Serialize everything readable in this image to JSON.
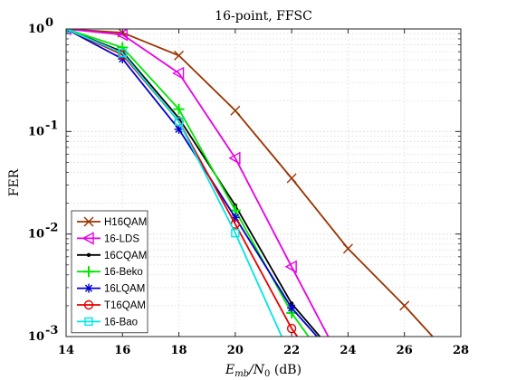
{
  "chart_data": {
    "type": "line",
    "title": "16-point, FFSC",
    "xlabel_parts": {
      "base": "E",
      "sub": "mb",
      "mid": "/N",
      "sub2": "0",
      "unit": " (dB)"
    },
    "ylabel": "FER",
    "xlim": [
      14,
      28
    ],
    "ylim": [
      0.001,
      1
    ],
    "yscale": "log",
    "grid": true,
    "legend_position": "bottom-left",
    "x_tick_labels": [
      "14",
      "16",
      "18",
      "20",
      "22",
      "24",
      "26",
      "28"
    ],
    "y_tick_labels": [
      {
        "base": "10",
        "exp": "0"
      },
      {
        "base": "10",
        "exp": "-1"
      },
      {
        "base": "10",
        "exp": "-2"
      },
      {
        "base": "10",
        "exp": "-3"
      }
    ],
    "series": [
      {
        "name": "H16QAM",
        "color": "#993300",
        "marker": "x",
        "x": [
          14,
          16,
          18,
          20,
          22,
          24,
          26,
          27
        ],
        "y": [
          1.0,
          0.92,
          0.55,
          0.16,
          0.035,
          0.0072,
          0.002,
          0.001
        ]
      },
      {
        "name": "16-LDS",
        "color": "#e600e6",
        "marker": "triangle-left",
        "x": [
          14,
          16,
          18,
          20,
          22,
          23.3
        ],
        "y": [
          1.0,
          0.88,
          0.37,
          0.055,
          0.0048,
          0.001
        ]
      },
      {
        "name": "16CQAM",
        "color": "#000000",
        "marker": "dot",
        "x": [
          14,
          16,
          18,
          20,
          22,
          23.0
        ],
        "y": [
          1.0,
          0.6,
          0.135,
          0.019,
          0.0021,
          0.001
        ]
      },
      {
        "name": "16-Beko",
        "color": "#00e600",
        "marker": "plus",
        "x": [
          14,
          16,
          18,
          20,
          22,
          22.6
        ],
        "y": [
          1.0,
          0.66,
          0.165,
          0.017,
          0.0017,
          0.001
        ]
      },
      {
        "name": "16LQAM",
        "color": "#0000cc",
        "marker": "asterisk",
        "x": [
          14,
          16,
          18,
          20,
          22,
          22.9
        ],
        "y": [
          1.0,
          0.51,
          0.105,
          0.0145,
          0.0019,
          0.001
        ]
      },
      {
        "name": "T16QAM",
        "color": "#e60000",
        "marker": "circle",
        "x": [
          14,
          16,
          18,
          20,
          22,
          22.2
        ],
        "y": [
          1.0,
          0.56,
          0.125,
          0.0125,
          0.0012,
          0.001
        ]
      },
      {
        "name": "16-Bao",
        "color": "#00e6e6",
        "marker": "square",
        "x": [
          14,
          16,
          18,
          20,
          21.65
        ],
        "y": [
          1.0,
          0.58,
          0.125,
          0.0102,
          0.001
        ]
      }
    ]
  }
}
